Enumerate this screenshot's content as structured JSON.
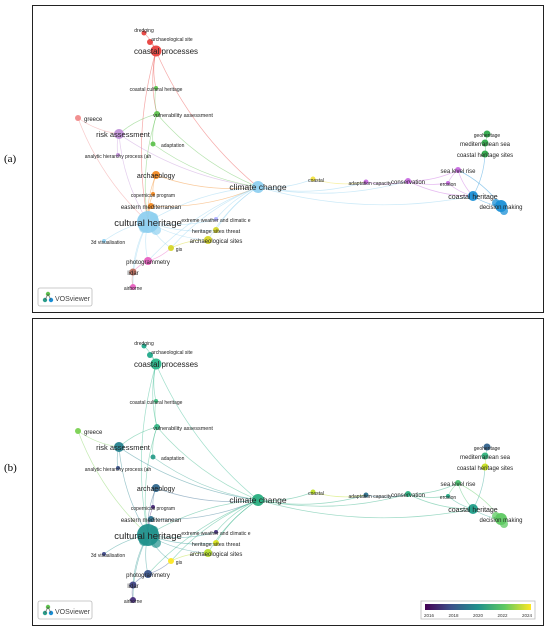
{
  "panels": [
    {
      "id": "a",
      "label": "(a)"
    },
    {
      "id": "b",
      "label": "(b)"
    }
  ],
  "logo_text": "VOSviewer",
  "legend": {
    "ticks": [
      "2016",
      "2018",
      "2020",
      "2022",
      "2024"
    ]
  },
  "nodes": [
    {
      "id": "dredging",
      "label": "dredging"
    },
    {
      "id": "archsite",
      "label": "archaeological site"
    },
    {
      "id": "coastalproc",
      "label": "coastal processes"
    },
    {
      "id": "coastalcult",
      "label": "coastal cultural heritage"
    },
    {
      "id": "vuln",
      "label": "vulnerability assessment"
    },
    {
      "id": "greece",
      "label": "greece"
    },
    {
      "id": "risk",
      "label": "risk assessment"
    },
    {
      "id": "adaptation",
      "label": "adaptation"
    },
    {
      "id": "ahp",
      "label": "analytic hierarchy process (ah"
    },
    {
      "id": "archaeology",
      "label": "archaeology"
    },
    {
      "id": "copernicus",
      "label": "copernicus program"
    },
    {
      "id": "climate",
      "label": "climate change"
    },
    {
      "id": "coastal",
      "label": "coastal"
    },
    {
      "id": "easternmed",
      "label": "eastern mediterranean"
    },
    {
      "id": "extreme",
      "label": "extreme weather and climatic e"
    },
    {
      "id": "culturalheritage",
      "label": "cultural heritage"
    },
    {
      "id": "sitesthreat",
      "label": "heritage sites threat"
    },
    {
      "id": "3dvis",
      "label": "3d visualisation"
    },
    {
      "id": "archsites",
      "label": "archaeological sites"
    },
    {
      "id": "gis",
      "label": "gis"
    },
    {
      "id": "photogrammetry",
      "label": "photogrammetry"
    },
    {
      "id": "lidar",
      "label": "lidar"
    },
    {
      "id": "airborne",
      "label": "airborne"
    },
    {
      "id": "adaptcap",
      "label": "adaptation capacity"
    },
    {
      "id": "conservation",
      "label": "conservation"
    },
    {
      "id": "sealevel",
      "label": "sea level rise"
    },
    {
      "id": "erosion",
      "label": "erosion"
    },
    {
      "id": "geoheritage",
      "label": "geoheritage"
    },
    {
      "id": "medsea",
      "label": "mediterranean sea"
    },
    {
      "id": "chsites",
      "label": "coastal heritage sites"
    },
    {
      "id": "coastalheritage",
      "label": "coastal heritage"
    },
    {
      "id": "decision",
      "label": "decision making"
    }
  ]
}
